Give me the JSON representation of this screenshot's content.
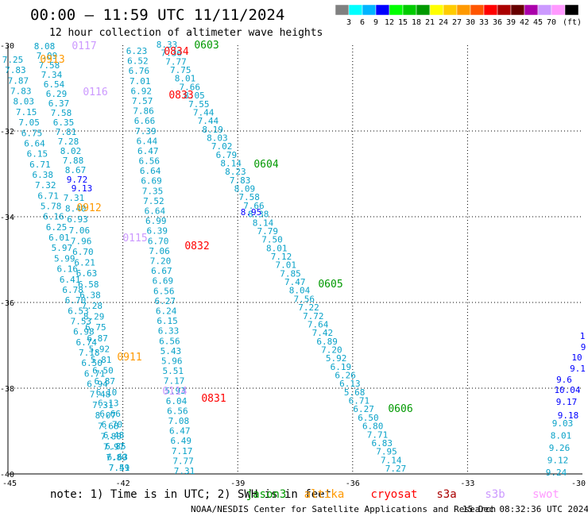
{
  "header": {
    "title": "00:00 – 11:59 UTC 11/11/2024",
    "subtitle": "12 hour collection of altimeter wave heights"
  },
  "colorbar": {
    "unit": "(ft)",
    "swatches": [
      {
        "label": "",
        "color": "#808080"
      },
      {
        "label": "3",
        "color": "#00ffff"
      },
      {
        "label": "6",
        "color": "#00b4ff"
      },
      {
        "label": "9",
        "color": "#0000ff"
      },
      {
        "label": "12",
        "color": "#00ff00"
      },
      {
        "label": "15",
        "color": "#00cc00"
      },
      {
        "label": "18",
        "color": "#009900"
      },
      {
        "label": "21",
        "color": "#ffff00"
      },
      {
        "label": "24",
        "color": "#ffcc00"
      },
      {
        "label": "27",
        "color": "#ff9900"
      },
      {
        "label": "30",
        "color": "#ff5500"
      },
      {
        "label": "33",
        "color": "#ff0000"
      },
      {
        "label": "36",
        "color": "#aa0000"
      },
      {
        "label": "39",
        "color": "#660000"
      },
      {
        "label": "42",
        "color": "#aa00aa"
      },
      {
        "label": "45",
        "color": "#cc99ff"
      },
      {
        "label": "70",
        "color": "#ff99ff"
      },
      {
        "label": "",
        "color": "#000000"
      }
    ]
  },
  "axes": {
    "lat_labels": [
      "-30",
      "-32",
      "-34",
      "-36",
      "-38",
      "-40"
    ],
    "lon_labels": [
      "-45",
      "-42",
      "-39",
      "-36",
      "-33",
      "-30"
    ]
  },
  "tracks": [
    {
      "color": "#0aa2c8",
      "values": [
        "8.08",
        "7.09",
        "7.58",
        "7.34",
        "6.54",
        "6.29",
        "6.37",
        "7.58",
        "6.35",
        "7.81",
        "7.28",
        "8.02",
        "7.88",
        "8.67"
      ]
    },
    {
      "color": "#0aa2c8",
      "values": [
        "7.25",
        "7.83",
        "7.87",
        "7.83",
        "8.03",
        "7.15",
        "7.05",
        "6.75",
        "6.64",
        "6.15",
        "6.71",
        "6.38",
        "7.32",
        "6.71",
        "5.78",
        "6.16",
        "6.25",
        "6.01",
        "5.97",
        "5.99",
        "6.16",
        "6.41",
        "6.78",
        "6.70",
        "6.53",
        "7.53",
        "6.98",
        "6.74",
        "7.18",
        "6.50",
        "6.71",
        "6.94",
        "7.48",
        "7.31",
        "8.07",
        "7.68",
        "7.80",
        "7.97",
        "7.89",
        "7.59"
      ]
    },
    {
      "color": "#0aa2c8",
      "values": [
        "7.31",
        "8.40",
        "6.93",
        "7.06",
        "7.96",
        "6.70",
        "6.21",
        "6.63",
        "6.58",
        "6.38",
        "7.28",
        "8.29",
        "6.75",
        "6.87",
        "5.92",
        "5.81",
        "6.50",
        "6.87",
        "6.10",
        "6.13",
        "6.66",
        "6.70",
        "6.48",
        "6.85",
        "6.63",
        "7.41"
      ]
    },
    {
      "color": "#0aa2c8",
      "values": [
        "6.23",
        "6.52",
        "6.76",
        "7.01",
        "6.92",
        "7.57",
        "7.86",
        "6.66",
        "7.39",
        "6.44",
        "6.47",
        "6.56",
        "6.64",
        "6.69",
        "7.35",
        "7.52",
        "6.64",
        "6.99",
        "6.39",
        "6.70",
        "7.06",
        "7.20",
        "6.67",
        "6.69",
        "6.56",
        "6.27",
        "6.24",
        "6.15",
        "6.33",
        "6.56",
        "5.43",
        "5.96",
        "5.51",
        "7.17",
        "5.93",
        "6.04",
        "6.56",
        "7.08",
        "6.47",
        "6.49",
        "7.17",
        "7.77",
        "7.31"
      ]
    },
    {
      "color": "#0aa2c8",
      "values": [
        "8.33",
        "7.36",
        "7.77",
        "7.75",
        "8.01",
        "7.66",
        "8.05",
        "7.55",
        "7.44",
        "7.44",
        "8.19",
        "8.03",
        "7.02",
        "6.79",
        "8.14",
        "8.23",
        "7.83",
        "8.09",
        "7.58",
        "7.66",
        "8.38",
        "8.14",
        "7.79",
        "7.50",
        "8.01",
        "7.12",
        "7.01",
        "7.85",
        "7.47",
        "8.04",
        "7.56",
        "7.22",
        "7.72",
        "7.64",
        "7.42",
        "6.89",
        "7.20",
        "5.92",
        "6.19",
        "6.26",
        "6.13",
        "5.68",
        "6.71",
        "6.27",
        "6.50",
        "6.80",
        "7.71",
        "6.83",
        "7.95",
        "7.14",
        "7.27"
      ]
    },
    {
      "color": "#0000ff",
      "values": [
        "9.72",
        "9.13",
        "8.95"
      ]
    },
    {
      "color": "#0aa2c8",
      "values": [
        "9.03",
        "8.01",
        "9.26",
        "9.12",
        "9.24"
      ]
    },
    {
      "color": "#0000ff",
      "values": [
        "9.18",
        "9.17",
        "10.04",
        "9.6",
        "9.1",
        "10",
        "9",
        "1"
      ]
    }
  ],
  "pass_labels": [
    {
      "text": "0117",
      "color": "#cc99ff"
    },
    {
      "text": "0913",
      "color": "#ff9900"
    },
    {
      "text": "0116",
      "color": "#cc99ff"
    },
    {
      "text": "0912",
      "color": "#ff9900"
    },
    {
      "text": "0115",
      "color": "#cc99ff"
    },
    {
      "text": "0911",
      "color": "#ff9900"
    },
    {
      "text": "0114",
      "color": "#cc99ff"
    },
    {
      "text": "0834",
      "color": "#ff0000"
    },
    {
      "text": "0833",
      "color": "#ff0000"
    },
    {
      "text": "0832",
      "color": "#ff0000"
    },
    {
      "text": "0831",
      "color": "#ff0000"
    },
    {
      "text": "0603",
      "color": "#009900"
    },
    {
      "text": "0604",
      "color": "#009900"
    },
    {
      "text": "0605",
      "color": "#009900"
    },
    {
      "text": "0606",
      "color": "#009900"
    }
  ],
  "footer": {
    "note": "note:  1) Time is in UTC;  2) SWH is in feet",
    "legend": [
      {
        "name": "jason3",
        "color": "#009900"
      },
      {
        "name": "altika",
        "color": "#ff9900"
      },
      {
        "name": "cryosat",
        "color": "#ff0000"
      },
      {
        "name": "s3a",
        "color": "#aa0000"
      },
      {
        "name": "s3b",
        "color": "#cc99ff"
      },
      {
        "name": "swot",
        "color": "#ff99ff"
      }
    ],
    "credit": "NOAA/NESDIS Center for Satellite Applications and Research",
    "timestamp": "15 Dec 08:32:36 UTC 2024"
  }
}
